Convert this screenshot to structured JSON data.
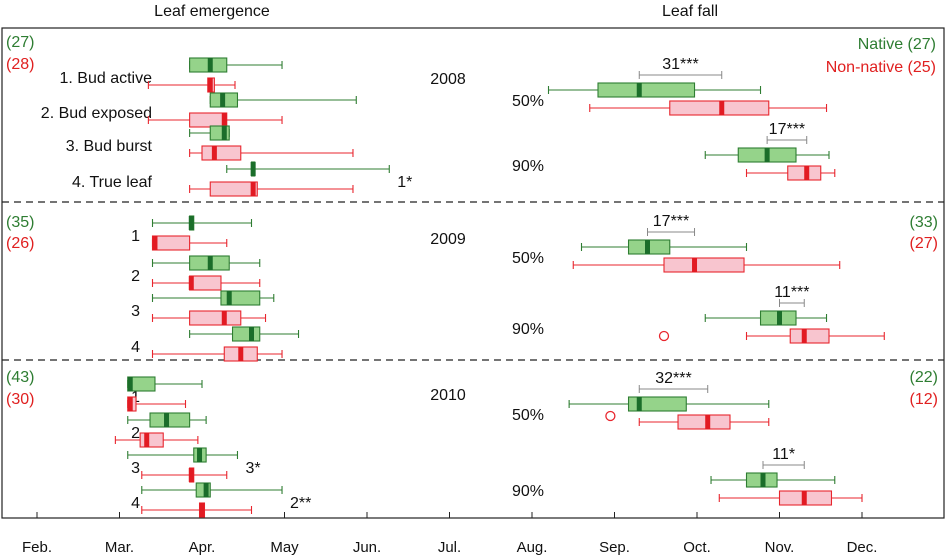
{
  "chart_data": {
    "type": "box",
    "headers": {
      "left": "Leaf emergence",
      "right": "Leaf fall"
    },
    "months": [
      "Feb.",
      "Mar.",
      "Apr.",
      "May",
      "Jun.",
      "Jul.",
      "Aug.",
      "Sep.",
      "Oct.",
      "Nov.",
      "Dec."
    ],
    "x_range": [
      1.5,
      12.3
    ],
    "legend": {
      "native": "Native (27)",
      "nonnative": "Non-native (25)",
      "placement": "top-right"
    },
    "colors": {
      "native_fill": "#95d38a",
      "native_median": "#1b6e2a",
      "native_line": "#2f7d32",
      "nonnative_fill": "#f8c5cf",
      "nonnative_median": "#e21b23",
      "nonnative_line": "#e8262e",
      "native_text": "#2e7d32",
      "nonnative_text": "#e02020",
      "sig_line": "#888888"
    },
    "panels": [
      {
        "year": "2008",
        "left_counts": {
          "native": "(27)",
          "nonnative": "(28)"
        },
        "right_counts": {
          "native": "",
          "nonnative": ""
        },
        "emergence": [
          {
            "label": "1. Bud active",
            "sig": "",
            "native": {
              "wmin": 3.85,
              "q1": 3.85,
              "med": 4.1,
              "q3": 4.3,
              "wmax": 4.97
            },
            "nonnative": {
              "wmin": 3.35,
              "q1": 4.07,
              "med": 4.1,
              "q3": 4.15,
              "wmax": 4.4
            }
          },
          {
            "label": "2. Bud exposed",
            "sig": "",
            "native": {
              "wmin": 4.1,
              "q1": 4.1,
              "med": 4.25,
              "q3": 4.43,
              "wmax": 5.87
            },
            "nonnative": {
              "wmin": 3.35,
              "q1": 3.85,
              "med": 4.27,
              "q3": 4.3,
              "wmax": 4.97
            }
          },
          {
            "label": "3. Bud burst",
            "sig": "",
            "native": {
              "wmin": 3.85,
              "q1": 4.1,
              "med": 4.27,
              "q3": 4.33,
              "wmax": 4.33
            },
            "nonnative": {
              "wmin": 3.85,
              "q1": 4.0,
              "med": 4.15,
              "q3": 4.47,
              "wmax": 5.83
            }
          },
          {
            "label": "4. True leaf",
            "sig": "1*",
            "native": {
              "wmin": 4.3,
              "q1": 4.6,
              "med": 4.62,
              "q3": 4.64,
              "wmax": 6.27
            },
            "nonnative": {
              "wmin": 3.85,
              "q1": 4.1,
              "med": 4.62,
              "q3": 4.67,
              "wmax": 5.83
            }
          }
        ],
        "fall": [
          {
            "label": "50%",
            "sig": "31***",
            "native": {
              "wmin": 8.2,
              "q1": 8.8,
              "med": 9.3,
              "q3": 9.97,
              "wmax": 10.77
            },
            "nonnative": {
              "wmin": 8.7,
              "q1": 9.67,
              "med": 10.3,
              "q3": 10.87,
              "wmax": 11.57
            }
          },
          {
            "label": "90%",
            "sig": "17***",
            "native": {
              "wmin": 10.1,
              "q1": 10.5,
              "med": 10.85,
              "q3": 11.2,
              "wmax": 11.6
            },
            "nonnative": {
              "wmin": 10.6,
              "q1": 11.1,
              "med": 11.33,
              "q3": 11.5,
              "wmax": 11.67
            }
          }
        ]
      },
      {
        "year": "2009",
        "left_counts": {
          "native": "(35)",
          "nonnative": "(26)"
        },
        "right_counts": {
          "native": "(33)",
          "nonnative": "(27)"
        },
        "emergence": [
          {
            "label": "1",
            "sig": "",
            "native": {
              "wmin": 3.4,
              "q1": 3.85,
              "med": 3.87,
              "q3": 3.9,
              "wmax": 4.6
            },
            "nonnative": {
              "wmin": 3.4,
              "q1": 3.4,
              "med": 3.43,
              "q3": 3.85,
              "wmax": 4.3
            }
          },
          {
            "label": "2",
            "sig": "",
            "native": {
              "wmin": 3.4,
              "q1": 3.85,
              "med": 4.1,
              "q3": 4.33,
              "wmax": 4.7
            },
            "nonnative": {
              "wmin": 3.4,
              "q1": 3.85,
              "med": 3.87,
              "q3": 4.23,
              "wmax": 4.7
            }
          },
          {
            "label": "3",
            "sig": "",
            "native": {
              "wmin": 3.4,
              "q1": 4.23,
              "med": 4.33,
              "q3": 4.7,
              "wmax": 4.87
            },
            "nonnative": {
              "wmin": 3.4,
              "q1": 3.85,
              "med": 4.27,
              "q3": 4.47,
              "wmax": 4.77
            }
          },
          {
            "label": "4",
            "sig": "",
            "native": {
              "wmin": 3.85,
              "q1": 4.37,
              "med": 4.6,
              "q3": 4.7,
              "wmax": 5.17
            },
            "nonnative": {
              "wmin": 3.4,
              "q1": 4.27,
              "med": 4.47,
              "q3": 4.67,
              "wmax": 4.97
            }
          }
        ],
        "fall": [
          {
            "label": "50%",
            "sig": "17***",
            "native": {
              "wmin": 8.6,
              "q1": 9.17,
              "med": 9.4,
              "q3": 9.67,
              "wmax": 10.6
            },
            "nonnative": {
              "wmin": 8.5,
              "q1": 9.6,
              "med": 9.97,
              "q3": 10.57,
              "wmax": 11.73
            },
            "outlier": null
          },
          {
            "label": "90%",
            "sig": "11***",
            "native": {
              "wmin": 10.1,
              "q1": 10.77,
              "med": 11.0,
              "q3": 11.2,
              "wmax": 11.57
            },
            "nonnative": {
              "wmin": 10.6,
              "q1": 11.13,
              "med": 11.3,
              "q3": 11.6,
              "wmax": 12.27
            },
            "outlier": 9.6
          }
        ]
      },
      {
        "year": "2010",
        "left_counts": {
          "native": "(43)",
          "nonnative": "(30)"
        },
        "right_counts": {
          "native": "(22)",
          "nonnative": "(12)"
        },
        "emergence": [
          {
            "label": "1",
            "sig": "",
            "native": {
              "wmin": 3.1,
              "q1": 3.1,
              "med": 3.13,
              "q3": 3.43,
              "wmax": 4.0
            },
            "nonnative": {
              "wmin": 3.1,
              "q1": 3.1,
              "med": 3.13,
              "q3": 3.2,
              "wmax": 3.8
            },
            "nonnative_thin": true
          },
          {
            "label": "2",
            "sig": "",
            "native": {
              "wmin": 3.1,
              "q1": 3.37,
              "med": 3.57,
              "q3": 3.85,
              "wmax": 4.05
            },
            "nonnative": {
              "wmin": 2.95,
              "q1": 3.25,
              "med": 3.33,
              "q3": 3.53,
              "wmax": 3.95
            }
          },
          {
            "label": "3",
            "sig": "3*",
            "native": {
              "wmin": 3.1,
              "q1": 3.9,
              "med": 3.97,
              "q3": 4.05,
              "wmax": 4.43
            },
            "nonnative": {
              "wmin": 3.27,
              "q1": 3.85,
              "med": 3.87,
              "q3": 3.9,
              "wmax": 4.3
            }
          },
          {
            "label": "4",
            "sig": "2**",
            "native": {
              "wmin": 3.27,
              "q1": 3.93,
              "med": 4.05,
              "q3": 4.1,
              "wmax": 4.97
            },
            "nonnative": {
              "wmin": 3.27,
              "q1": 3.97,
              "med": 4.0,
              "q3": 4.03,
              "wmax": 4.6
            }
          }
        ],
        "fall": [
          {
            "label": "50%",
            "sig": "32***",
            "native": {
              "wmin": 8.45,
              "q1": 9.17,
              "med": 9.3,
              "q3": 9.87,
              "wmax": 10.87
            },
            "nonnative": {
              "wmin": 9.3,
              "q1": 9.77,
              "med": 10.13,
              "q3": 10.4,
              "wmax": 10.87
            },
            "outlier": 8.95
          },
          {
            "label": "90%",
            "sig": "11*",
            "native": {
              "wmin": 10.17,
              "q1": 10.6,
              "med": 10.8,
              "q3": 10.97,
              "wmax": 11.67
            },
            "nonnative": {
              "wmin": 10.27,
              "q1": 11.0,
              "med": 11.3,
              "q3": 11.63,
              "wmax": 12.0
            },
            "outlier": null
          }
        ]
      }
    ]
  }
}
